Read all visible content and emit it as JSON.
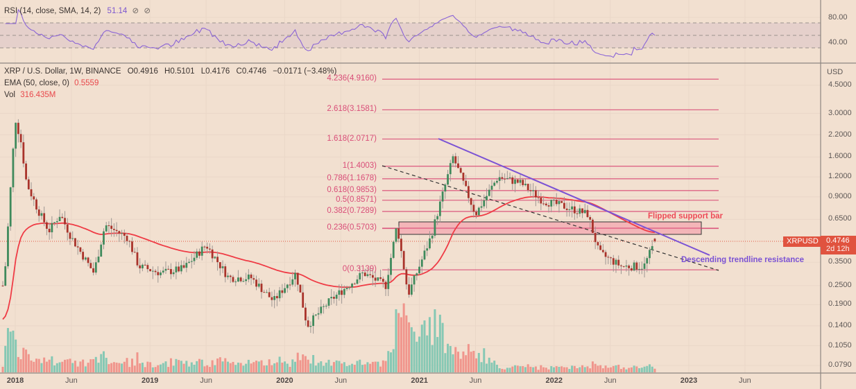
{
  "rsi": {
    "legend_label": "RSI (14, close, SMA, 14, 2)",
    "value": "51.14",
    "icons": [
      "hide-icon",
      "hide-icon"
    ],
    "axis_ticks": [
      "80.00",
      "40.00"
    ],
    "color": "#7c56cf"
  },
  "header": {
    "symbol": "XRP / U.S. Dollar, 1W, BINANCE",
    "open": "O0.4916",
    "high": "H0.5101",
    "low": "L0.4176",
    "close": "C0.4746",
    "change": "−0.0171 (−3.48%)",
    "ema_label": "EMA (50, close, 0)",
    "ema_value": "0.5559",
    "vol_label": "Vol",
    "vol_value": "316.435M"
  },
  "price_axis": {
    "currency": "USD",
    "ticks": [
      "4.5000",
      "3.0000",
      "2.2000",
      "1.6000",
      "1.2000",
      "0.9000",
      "0.6500",
      "0.3500",
      "0.2500",
      "0.1900",
      "0.1400",
      "0.1050",
      "0.0790"
    ]
  },
  "price_tag": {
    "symbol": "XRPUSD",
    "price": "0.4746",
    "countdown": "2d 12h",
    "color": "#e0533f"
  },
  "time_axis": {
    "labels": [
      {
        "text": "2018",
        "year": true
      },
      {
        "text": "Jun",
        "year": false
      },
      {
        "text": "2019",
        "year": true
      },
      {
        "text": "Jun",
        "year": false
      },
      {
        "text": "2020",
        "year": true
      },
      {
        "text": "Jun",
        "year": false
      },
      {
        "text": "2021",
        "year": true
      },
      {
        "text": "Jun",
        "year": false
      },
      {
        "text": "2022",
        "year": true
      },
      {
        "text": "Jun",
        "year": false
      },
      {
        "text": "2023",
        "year": true
      },
      {
        "text": "Jun",
        "year": false
      }
    ]
  },
  "fib_levels": [
    {
      "label": "4.236(4.9160)",
      "ratio": 4.236,
      "price": 4.916
    },
    {
      "label": "2.618(3.1581)",
      "ratio": 2.618,
      "price": 3.1581
    },
    {
      "label": "1.618(2.0717)",
      "ratio": 1.618,
      "price": 2.0717
    },
    {
      "label": "1(1.4003)",
      "ratio": 1,
      "price": 1.4003
    },
    {
      "label": "0.786(1.1678)",
      "ratio": 0.786,
      "price": 1.1678
    },
    {
      "label": "0.618(0.9853)",
      "ratio": 0.618,
      "price": 0.9853
    },
    {
      "label": "0.5(0.8571)",
      "ratio": 0.5,
      "price": 0.8571
    },
    {
      "label": "0.382(0.7289)",
      "ratio": 0.382,
      "price": 0.7289
    },
    {
      "label": "0.236(0.5703)",
      "ratio": 0.236,
      "price": 0.5703
    },
    {
      "label": "0(0.3139)",
      "ratio": 0,
      "price": 0.3139
    }
  ],
  "annotations": {
    "flipped_support": "Flipped support bar",
    "trendline": "Descending trendline resistance"
  },
  "colors": {
    "background": "#f2e0d0",
    "up_candle": "#3f8a5c",
    "down_candle": "#a9332b",
    "ema": "#ef3b45",
    "fib": "#d94d78",
    "trendline": "#7b52d4",
    "support_box": "#f0a5ad",
    "vol_up": "#86c8b4",
    "vol_down": "#f0958c"
  },
  "chart_data": {
    "type": "candlestick",
    "title": "XRP / U.S. Dollar, 1W, BINANCE",
    "xlabel": "",
    "ylabel": "USD",
    "yscale": "log",
    "ylim": [
      0.075,
      5.2
    ],
    "x_ticks": [
      "2018",
      "Jun",
      "2019",
      "Jun",
      "2020",
      "Jun",
      "2021",
      "Jun",
      "2022",
      "Jun",
      "2023",
      "Jun"
    ],
    "y_ticks": [
      4.5,
      3.0,
      2.2,
      1.6,
      1.2,
      0.9,
      0.65,
      0.35,
      0.25,
      0.19,
      0.14,
      0.105,
      0.079
    ],
    "last_bar": {
      "open": 0.4916,
      "high": 0.5101,
      "low": 0.4176,
      "close": 0.4746,
      "change": -0.0171,
      "change_pct": -3.48
    },
    "indicators": {
      "ema50_last": 0.5559,
      "volume_last": "316.435M",
      "rsi14_last": 51.14,
      "rsi_bands": [
        70,
        50,
        30
      ]
    },
    "price_path": [
      {
        "date": "2017-12",
        "close": 0.25
      },
      {
        "date": "2018-01",
        "close": 2.8
      },
      {
        "date": "2018-01b",
        "close": 2.0
      },
      {
        "date": "2018-02",
        "close": 1.1
      },
      {
        "date": "2018-03",
        "close": 0.75
      },
      {
        "date": "2018-04",
        "close": 0.55
      },
      {
        "date": "2018-05",
        "close": 0.7
      },
      {
        "date": "2018-06",
        "close": 0.5
      },
      {
        "date": "2018-08",
        "close": 0.3
      },
      {
        "date": "2018-09",
        "close": 0.6
      },
      {
        "date": "2018-11",
        "close": 0.5
      },
      {
        "date": "2018-12",
        "close": 0.33
      },
      {
        "date": "2019-02",
        "close": 0.3
      },
      {
        "date": "2019-04",
        "close": 0.32
      },
      {
        "date": "2019-06",
        "close": 0.45
      },
      {
        "date": "2019-08",
        "close": 0.28
      },
      {
        "date": "2019-10",
        "close": 0.28
      },
      {
        "date": "2019-12",
        "close": 0.2
      },
      {
        "date": "2020-02",
        "close": 0.3
      },
      {
        "date": "2020-03",
        "close": 0.14
      },
      {
        "date": "2020-05",
        "close": 0.2
      },
      {
        "date": "2020-08",
        "close": 0.3
      },
      {
        "date": "2020-10",
        "close": 0.25
      },
      {
        "date": "2020-11",
        "close": 0.6
      },
      {
        "date": "2020-12",
        "close": 0.22
      },
      {
        "date": "2021-02",
        "close": 0.5
      },
      {
        "date": "2021-04",
        "close": 1.6
      },
      {
        "date": "2021-06",
        "close": 0.7
      },
      {
        "date": "2021-08",
        "close": 1.2
      },
      {
        "date": "2021-10",
        "close": 1.1
      },
      {
        "date": "2021-12",
        "close": 0.85
      },
      {
        "date": "2022-02",
        "close": 0.78
      },
      {
        "date": "2022-04",
        "close": 0.7
      },
      {
        "date": "2022-05",
        "close": 0.4
      },
      {
        "date": "2022-07",
        "close": 0.33
      },
      {
        "date": "2022-09",
        "close": 0.33
      },
      {
        "date": "2022-10",
        "close": 0.4746
      }
    ],
    "fib_retracement": [
      {
        "ratio": 4.236,
        "price": 4.916
      },
      {
        "ratio": 2.618,
        "price": 3.1581
      },
      {
        "ratio": 1.618,
        "price": 2.0717
      },
      {
        "ratio": 1,
        "price": 1.4003
      },
      {
        "ratio": 0.786,
        "price": 1.1678
      },
      {
        "ratio": 0.618,
        "price": 0.9853
      },
      {
        "ratio": 0.5,
        "price": 0.8571
      },
      {
        "ratio": 0.382,
        "price": 0.7289
      },
      {
        "ratio": 0.236,
        "price": 0.5703
      },
      {
        "ratio": 0,
        "price": 0.3139
      }
    ],
    "annotations": [
      "Flipped support bar",
      "Descending trendline resistance"
    ],
    "grid": true,
    "legend_position": "top-left"
  }
}
